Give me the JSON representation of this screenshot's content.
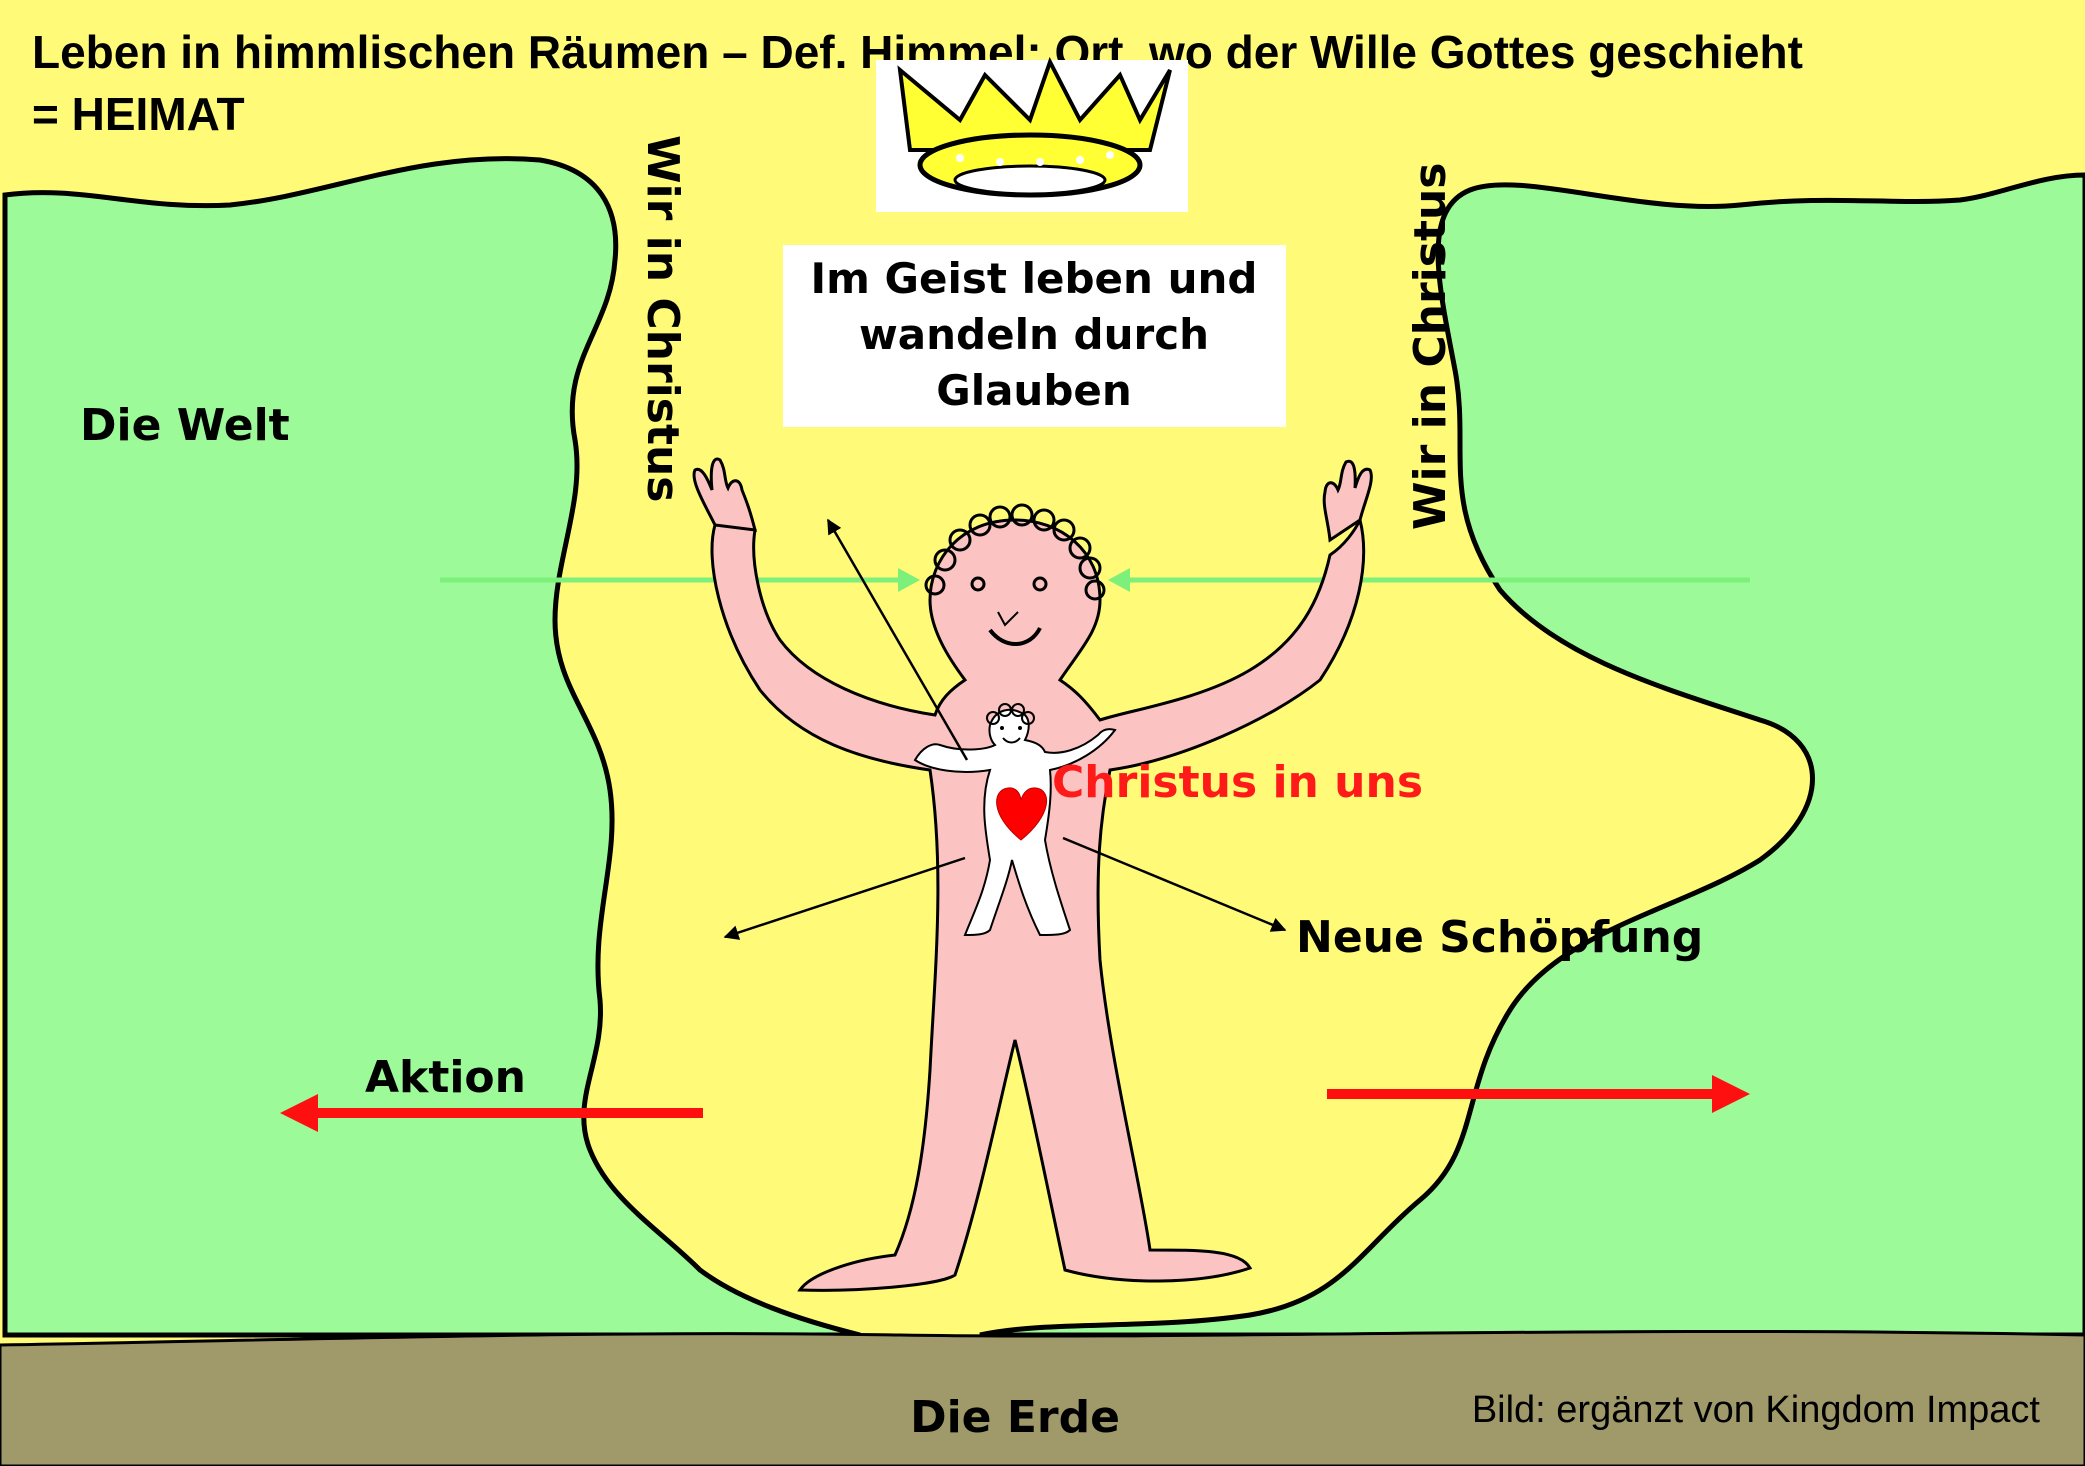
{
  "title_line1": "Leben in himmlischen Räumen – Def. Himmel: Ort, wo der Wille Gottes geschieht",
  "title_line2": "= HEIMAT",
  "box_line1": "Im Geist leben und",
  "box_line2": "wandeln durch",
  "box_line3": "Glauben",
  "label_world": "Die Welt",
  "label_we_in_christ_left": "Wir in Christus",
  "label_we_in_christ_right": "Wir in Christus",
  "label_christ_in_us": "Christus in uns",
  "label_new_creation": "Neue Schöpfung",
  "label_action": "Aktion",
  "label_earth": "Die Erde",
  "credit": "Bild: ergänzt von Kingdom Impact",
  "colors": {
    "heaven_yellow": "#fffa78",
    "world_green": "#9cfb98",
    "earth_brown": "#a09a6a",
    "body_pink": "#fbc4c2",
    "arrow_green": "#7cf07a",
    "arrow_red": "#ff1010",
    "text_red": "#ff1a1a",
    "crown_yellow": "#ffff33"
  },
  "icons": [
    "crown-icon",
    "heart-icon"
  ]
}
